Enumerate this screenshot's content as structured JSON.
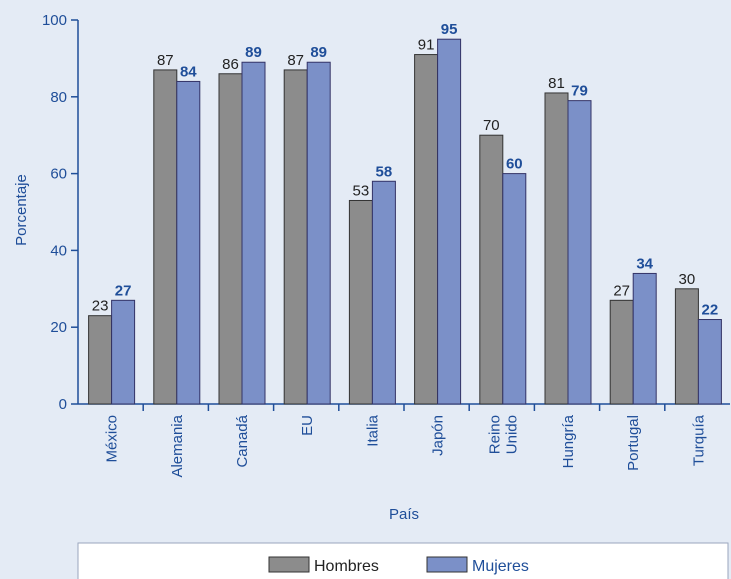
{
  "chart_data": {
    "type": "bar",
    "categories": [
      "México",
      "Alemania",
      "Canadá",
      "EU",
      "Italia",
      "Japón",
      "Reino Unido",
      "Hungría",
      "Portugal",
      "Turquía"
    ],
    "category_lines": [
      [
        "México"
      ],
      [
        "Alemania"
      ],
      [
        "Canadá"
      ],
      [
        "EU"
      ],
      [
        "Italia"
      ],
      [
        "Japón"
      ],
      [
        "Reino",
        "Unido"
      ],
      [
        "Hungría"
      ],
      [
        "Portugal"
      ],
      [
        "Turquía"
      ]
    ],
    "series": [
      {
        "name": "Hombres",
        "values": [
          23,
          87,
          86,
          87,
          53,
          91,
          70,
          81,
          27,
          30
        ],
        "color": "#8c8c8c"
      },
      {
        "name": "Mujeres",
        "values": [
          27,
          84,
          89,
          89,
          58,
          95,
          60,
          79,
          34,
          22
        ],
        "color": "#7b90c8"
      }
    ],
    "xlabel": "País",
    "ylabel": "Porcentaje",
    "ylim": [
      0,
      100
    ],
    "yticks": [
      0,
      20,
      40,
      60,
      80,
      100
    ],
    "grid": false,
    "legend_position": "bottom"
  },
  "colors": {
    "background": "#e4ebf5",
    "axis": "#1f4e99",
    "text_blue": "#1f4e99",
    "text_dark": "#222222"
  }
}
